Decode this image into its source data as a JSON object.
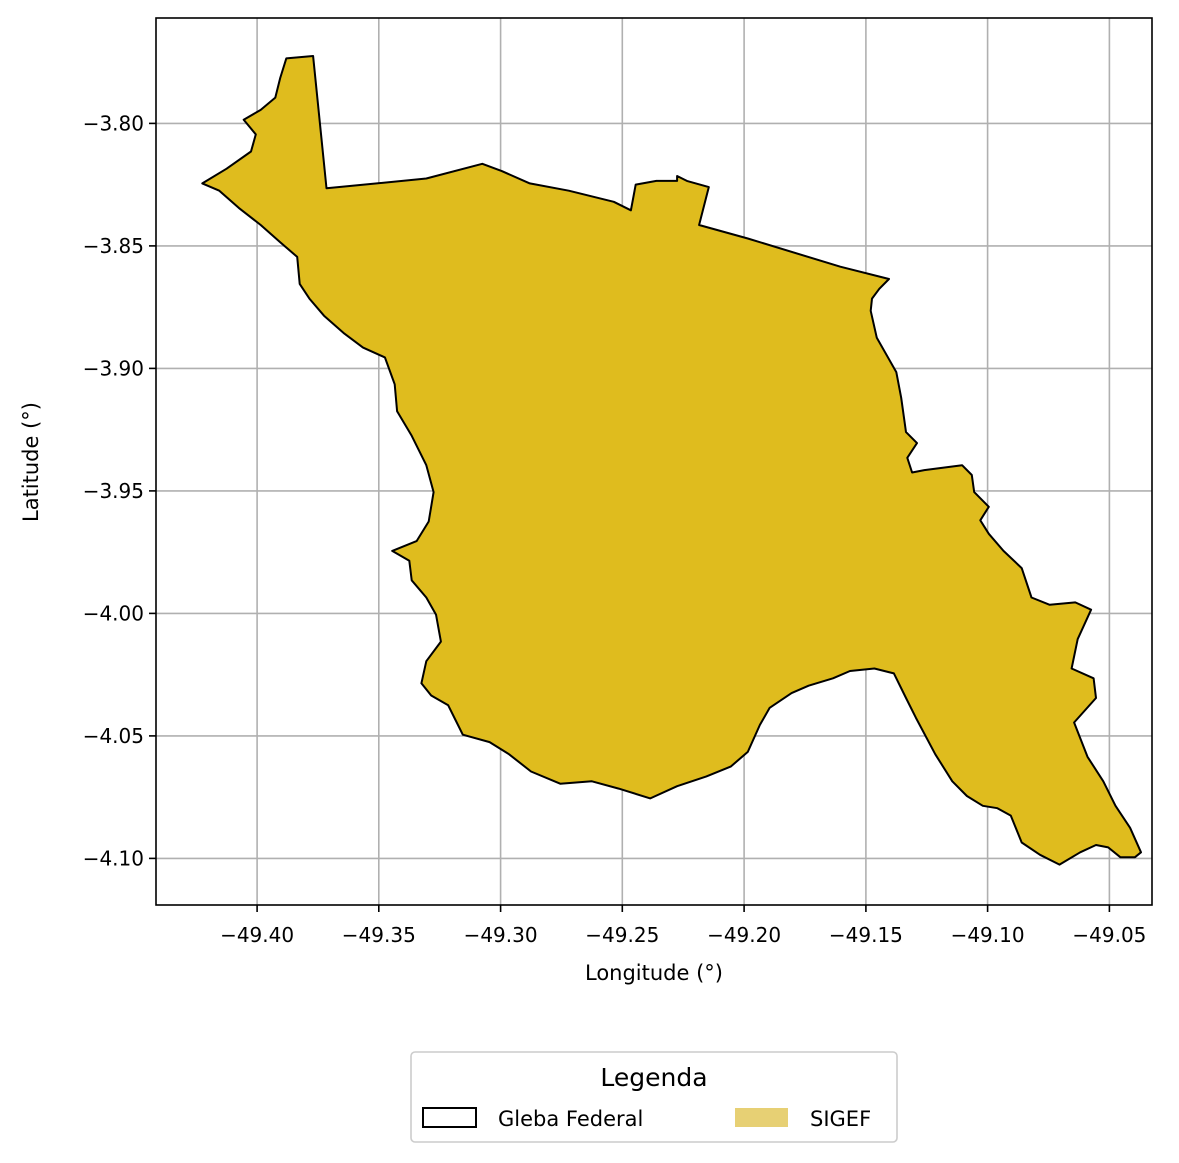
{
  "chart_data": {
    "type": "map",
    "xlabel": "Longitude (°)",
    "ylabel": "Latitude (°)",
    "xlim": [
      -49.4415,
      -49.0325
    ],
    "ylim": [
      -4.119,
      -3.757
    ],
    "xticks": [
      -49.4,
      -49.35,
      -49.3,
      -49.25,
      -49.2,
      -49.15,
      -49.1,
      -49.05
    ],
    "xtick_labels": [
      "−49.40",
      "−49.35",
      "−49.30",
      "−49.25",
      "−49.20",
      "−49.15",
      "−49.10",
      "−49.05"
    ],
    "yticks": [
      -3.8,
      -3.85,
      -3.9,
      -3.95,
      -4.0,
      -4.05,
      -4.1
    ],
    "ytick_labels": [
      "−3.80",
      "−3.85",
      "−3.90",
      "−3.95",
      "−4.00",
      "−4.05",
      "−4.10"
    ],
    "grid": true,
    "polygon_fill": "#dfbc1e",
    "polygon_edge": "#000000",
    "polygon": [
      [
        -49.388,
        -3.7735
      ],
      [
        -49.377,
        -3.7725
      ],
      [
        -49.3715,
        -3.8265
      ],
      [
        -49.3305,
        -3.8225
      ],
      [
        -49.3075,
        -3.8165
      ],
      [
        -49.2995,
        -3.8195
      ],
      [
        -49.288,
        -3.8245
      ],
      [
        -49.272,
        -3.8275
      ],
      [
        -49.2535,
        -3.832
      ],
      [
        -49.2465,
        -3.8355
      ],
      [
        -49.2445,
        -3.825
      ],
      [
        -49.236,
        -3.8235
      ],
      [
        -49.2275,
        -3.8235
      ],
      [
        -49.2275,
        -3.8215
      ],
      [
        -49.2235,
        -3.8235
      ],
      [
        -49.2145,
        -3.826
      ],
      [
        -49.2185,
        -3.8415
      ],
      [
        -49.1985,
        -3.847
      ],
      [
        -49.1605,
        -3.8585
      ],
      [
        -49.1405,
        -3.8635
      ],
      [
        -49.1445,
        -3.8675
      ],
      [
        -49.1475,
        -3.8715
      ],
      [
        -49.148,
        -3.8765
      ],
      [
        -49.1455,
        -3.8875
      ],
      [
        -49.1375,
        -3.9015
      ],
      [
        -49.1355,
        -3.912
      ],
      [
        -49.1335,
        -3.926
      ],
      [
        -49.129,
        -3.9305
      ],
      [
        -49.133,
        -3.9365
      ],
      [
        -49.131,
        -3.9425
      ],
      [
        -49.126,
        -3.9415
      ],
      [
        -49.1105,
        -3.9395
      ],
      [
        -49.1065,
        -3.9435
      ],
      [
        -49.1055,
        -3.9505
      ],
      [
        -49.0995,
        -3.9565
      ],
      [
        -49.103,
        -3.962
      ],
      [
        -49.0995,
        -3.9675
      ],
      [
        -49.0935,
        -3.9745
      ],
      [
        -49.086,
        -3.9815
      ],
      [
        -49.082,
        -3.9935
      ],
      [
        -49.0745,
        -3.9965
      ],
      [
        -49.064,
        -3.9955
      ],
      [
        -49.0575,
        -3.9985
      ],
      [
        -49.063,
        -4.0105
      ],
      [
        -49.0655,
        -4.0225
      ],
      [
        -49.0565,
        -4.0265
      ],
      [
        -49.0555,
        -4.0345
      ],
      [
        -49.0645,
        -4.0445
      ],
      [
        -49.059,
        -4.0585
      ],
      [
        -49.0525,
        -4.0685
      ],
      [
        -49.0475,
        -4.0785
      ],
      [
        -49.0415,
        -4.0875
      ],
      [
        -49.037,
        -4.0975
      ],
      [
        -49.0395,
        -4.0995
      ],
      [
        -49.0455,
        -4.0995
      ],
      [
        -49.0505,
        -4.0955
      ],
      [
        -49.0555,
        -4.0945
      ],
      [
        -49.062,
        -4.0975
      ],
      [
        -49.0705,
        -4.1025
      ],
      [
        -49.0785,
        -4.0985
      ],
      [
        -49.086,
        -4.0935
      ],
      [
        -49.0905,
        -4.0825
      ],
      [
        -49.096,
        -4.0795
      ],
      [
        -49.102,
        -4.0785
      ],
      [
        -49.1085,
        -4.0745
      ],
      [
        -49.1145,
        -4.0685
      ],
      [
        -49.1215,
        -4.0575
      ],
      [
        -49.1295,
        -4.0425
      ],
      [
        -49.1335,
        -4.0345
      ],
      [
        -49.1385,
        -4.0245
      ],
      [
        -49.1465,
        -4.0225
      ],
      [
        -49.1565,
        -4.0235
      ],
      [
        -49.1635,
        -4.0265
      ],
      [
        -49.1735,
        -4.0295
      ],
      [
        -49.1805,
        -4.0325
      ],
      [
        -49.1895,
        -4.0385
      ],
      [
        -49.1935,
        -4.0455
      ],
      [
        -49.1985,
        -4.0565
      ],
      [
        -49.2055,
        -4.0625
      ],
      [
        -49.2155,
        -4.0665
      ],
      [
        -49.2275,
        -4.0705
      ],
      [
        -49.2385,
        -4.0755
      ],
      [
        -49.2515,
        -4.0715
      ],
      [
        -49.2625,
        -4.0685
      ],
      [
        -49.2755,
        -4.0695
      ],
      [
        -49.2875,
        -4.0645
      ],
      [
        -49.2965,
        -4.0575
      ],
      [
        -49.3045,
        -4.0525
      ],
      [
        -49.3155,
        -4.0495
      ],
      [
        -49.3185,
        -4.0435
      ],
      [
        -49.3215,
        -4.0375
      ],
      [
        -49.3285,
        -4.0335
      ],
      [
        -49.3325,
        -4.0285
      ],
      [
        -49.3305,
        -4.0195
      ],
      [
        -49.3245,
        -4.0115
      ],
      [
        -49.3265,
        -4.0005
      ],
      [
        -49.3305,
        -3.9935
      ],
      [
        -49.3365,
        -3.9865
      ],
      [
        -49.3375,
        -3.9785
      ],
      [
        -49.3445,
        -3.9745
      ],
      [
        -49.3345,
        -3.9705
      ],
      [
        -49.3295,
        -3.9625
      ],
      [
        -49.3275,
        -3.9505
      ],
      [
        -49.3305,
        -3.9395
      ],
      [
        -49.3365,
        -3.9275
      ],
      [
        -49.3425,
        -3.9175
      ],
      [
        -49.3435,
        -3.9065
      ],
      [
        -49.3475,
        -3.8955
      ],
      [
        -49.3565,
        -3.8915
      ],
      [
        -49.3645,
        -3.8855
      ],
      [
        -49.3725,
        -3.8785
      ],
      [
        -49.3785,
        -3.8715
      ],
      [
        -49.3825,
        -3.8655
      ],
      [
        -49.3835,
        -3.8545
      ],
      [
        -49.3905,
        -3.8485
      ],
      [
        -49.3985,
        -3.8415
      ],
      [
        -49.4075,
        -3.8345
      ],
      [
        -49.4155,
        -3.8275
      ],
      [
        -49.4225,
        -3.8245
      ],
      [
        -49.4125,
        -3.8185
      ],
      [
        -49.4025,
        -3.8115
      ],
      [
        -49.4005,
        -3.8045
      ],
      [
        -49.4055,
        -3.7985
      ],
      [
        -49.3985,
        -3.7945
      ],
      [
        -49.3925,
        -3.7895
      ],
      [
        -49.3905,
        -3.7815
      ]
    ]
  },
  "legend": {
    "title": "Legenda",
    "items": [
      {
        "label": "Gleba Federal",
        "style": "outline",
        "edge": "#000000",
        "fill": "none"
      },
      {
        "label": "SIGEF",
        "style": "filled",
        "fill": "#e7d074"
      }
    ]
  }
}
